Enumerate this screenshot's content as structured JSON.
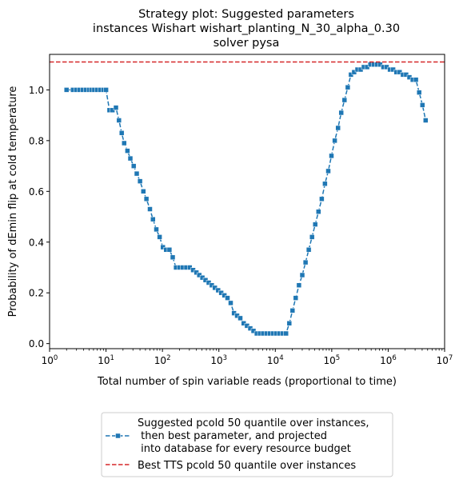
{
  "chart_data": {
    "type": "line",
    "title_lines": [
      "Strategy plot: Suggested parameters",
      "instances Wishart wishart_planting_N_30_alpha_0.30",
      "solver pysa"
    ],
    "xlabel": "Total number of spin variable reads (proportional to time)",
    "ylabel": "Probability of dEmin flip at cold temperature",
    "x_scale": "log",
    "xlim": [
      1,
      10000000
    ],
    "ylim": [
      -0.02,
      1.14
    ],
    "x_ticks": [
      {
        "value": 1,
        "label": "10^0"
      },
      {
        "value": 10,
        "label": "10^1"
      },
      {
        "value": 100,
        "label": "10^2"
      },
      {
        "value": 1000,
        "label": "10^3"
      },
      {
        "value": 10000,
        "label": "10^4"
      },
      {
        "value": 100000,
        "label": "10^5"
      },
      {
        "value": 1000000,
        "label": "10^6"
      },
      {
        "value": 10000000,
        "label": "10^7"
      }
    ],
    "y_ticks": [
      {
        "value": 0.0,
        "label": "0.0"
      },
      {
        "value": 0.2,
        "label": "0.2"
      },
      {
        "value": 0.4,
        "label": "0.4"
      },
      {
        "value": 0.6,
        "label": "0.6"
      },
      {
        "value": 0.8,
        "label": "0.8"
      },
      {
        "value": 1.0,
        "label": "1.0"
      }
    ],
    "grid": false,
    "legend_position": "below plot",
    "series": [
      {
        "name": "Suggested pcold 50 quantile over instances,\n then best parameter, and projected\n into database for every resource budget",
        "color": "#1f77b4",
        "line_style": "dashed",
        "marker": "square",
        "x": [
          2,
          2.6,
          3,
          3.4,
          3.9,
          4.4,
          5,
          5.6,
          6.2,
          7,
          8,
          9,
          10,
          11.5,
          13,
          15,
          17,
          19,
          21,
          24,
          27,
          31,
          35,
          40,
          46,
          52,
          60,
          68,
          78,
          89,
          102,
          116,
          133,
          152,
          174,
          200,
          230,
          265,
          305,
          350,
          400,
          450,
          510,
          580,
          660,
          750,
          850,
          970,
          1100,
          1250,
          1420,
          1620,
          1850,
          2100,
          2400,
          2750,
          3150,
          3600,
          4100,
          4700,
          5350,
          6100,
          7000,
          8000,
          9100,
          10400,
          11900,
          13600,
          15500,
          17700,
          20200,
          23000,
          26300,
          30000,
          34300,
          39100,
          44700,
          51000,
          58200,
          66500,
          75900,
          86700,
          99000,
          113000,
          129000,
          147000,
          168000,
          192000,
          219000,
          250000,
          285000,
          325000,
          371000,
          424000,
          484000,
          553000,
          631000,
          721000,
          823000,
          940000,
          1073000,
          1225000,
          1400000,
          1598000,
          1825000,
          2084000,
          2380000,
          2717000,
          3102000,
          3542000,
          4044000,
          4619000
        ],
        "y": [
          1.0,
          1.0,
          1.0,
          1.0,
          1.0,
          1.0,
          1.0,
          1.0,
          1.0,
          1.0,
          1.0,
          1.0,
          1.0,
          0.92,
          0.92,
          0.93,
          0.88,
          0.83,
          0.79,
          0.76,
          0.73,
          0.7,
          0.67,
          0.64,
          0.6,
          0.57,
          0.53,
          0.49,
          0.45,
          0.42,
          0.38,
          0.37,
          0.37,
          0.34,
          0.3,
          0.3,
          0.3,
          0.3,
          0.3,
          0.29,
          0.28,
          0.27,
          0.26,
          0.25,
          0.24,
          0.23,
          0.22,
          0.21,
          0.2,
          0.19,
          0.18,
          0.16,
          0.12,
          0.11,
          0.1,
          0.08,
          0.07,
          0.06,
          0.05,
          0.04,
          0.04,
          0.04,
          0.04,
          0.04,
          0.04,
          0.04,
          0.04,
          0.04,
          0.04,
          0.08,
          0.13,
          0.18,
          0.23,
          0.27,
          0.32,
          0.37,
          0.42,
          0.47,
          0.52,
          0.57,
          0.63,
          0.68,
          0.74,
          0.8,
          0.85,
          0.91,
          0.96,
          1.01,
          1.06,
          1.07,
          1.08,
          1.08,
          1.09,
          1.09,
          1.1,
          1.1,
          1.1,
          1.1,
          1.09,
          1.09,
          1.08,
          1.08,
          1.07,
          1.07,
          1.06,
          1.06,
          1.05,
          1.04,
          1.04,
          0.99,
          0.94,
          0.88
        ]
      },
      {
        "name": "Best TTS pcold 50 quantile over instances",
        "color": "#d62728",
        "line_style": "dashed",
        "marker": "none",
        "type": "hline",
        "y_value": 1.11
      }
    ]
  }
}
